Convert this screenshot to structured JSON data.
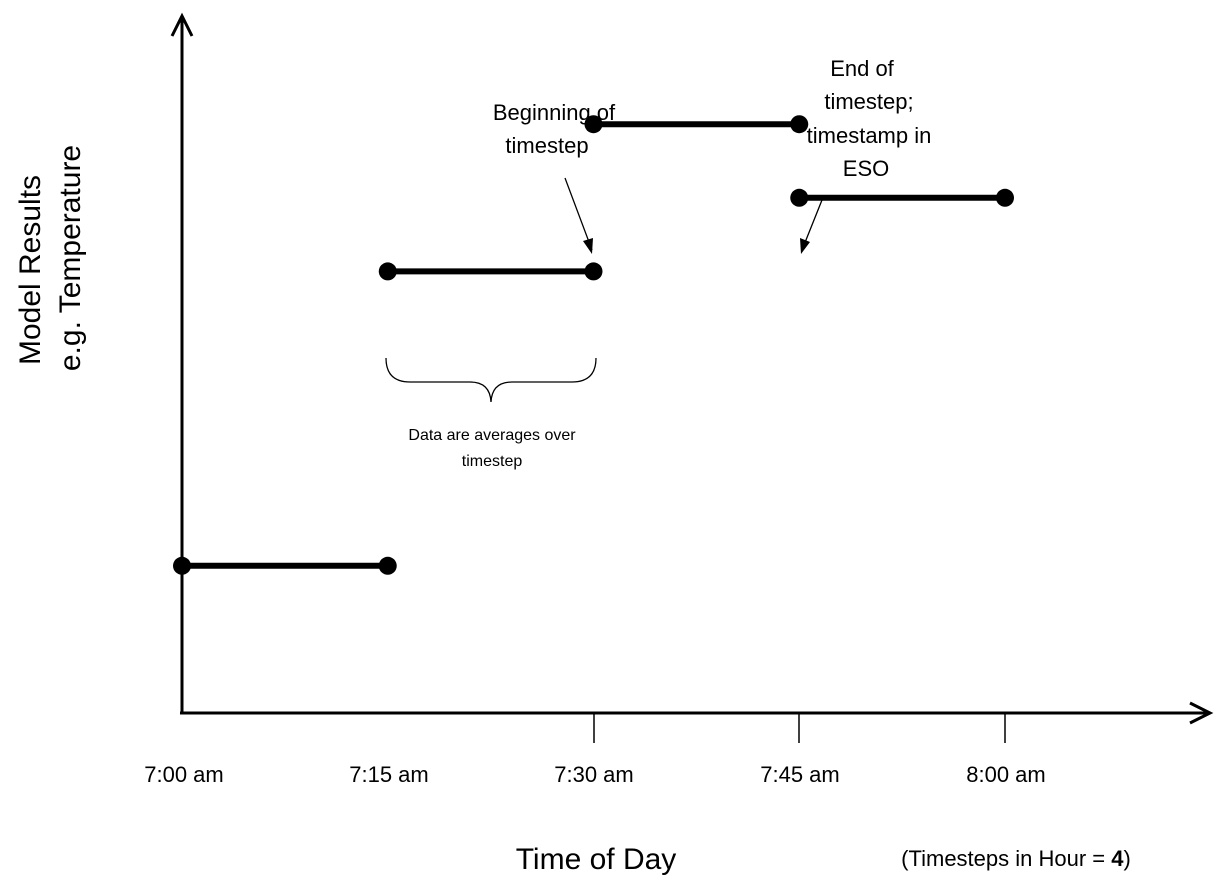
{
  "axes": {
    "y_title_line1": "Model Results",
    "y_title_line2": "e.g. Temperature",
    "x_title": "Time of Day",
    "x_note_prefix": "(Timesteps in Hour = ",
    "x_note_value": "4",
    "x_note_suffix": ")"
  },
  "ticks": [
    "7:00 am",
    "7:15 am",
    "7:30 am",
    "7:45 am",
    "8:00 am"
  ],
  "annotations": {
    "beginning": [
      "Beginning of",
      "timestep"
    ],
    "end": [
      "End of",
      "timestep;",
      "timestamp in",
      "ESO"
    ],
    "brace": [
      "Data are averages over",
      "timestep"
    ]
  },
  "chart_data": {
    "type": "line",
    "x": [
      "7:00 am",
      "7:15 am",
      "7:30 am",
      "7:45 am",
      "8:00 am"
    ],
    "segments": [
      {
        "start": "7:00 am",
        "end": "7:15 am",
        "level": 1
      },
      {
        "start": "7:15 am",
        "end": "7:30 am",
        "level": 3
      },
      {
        "start": "7:30 am",
        "end": "7:45 am",
        "level": 4
      },
      {
        "start": "7:45 am",
        "end": "8:00 am",
        "level": 3.5
      }
    ],
    "ylim": [
      0,
      5
    ],
    "grid": false
  }
}
